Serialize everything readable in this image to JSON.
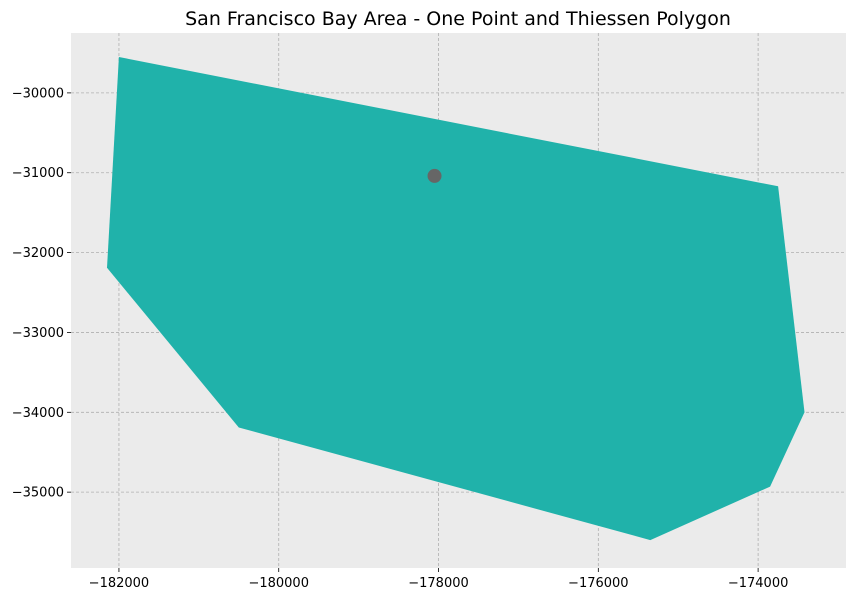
{
  "chart_data": {
    "type": "map",
    "title": "San Francisco Bay Area - One Point and Thiessen Polygon",
    "xlabel": "",
    "ylabel": "",
    "xlim": [
      -182600,
      -172900
    ],
    "ylim": [
      -35950,
      -29250
    ],
    "xticks": [
      -182000,
      -180000,
      -178000,
      -176000,
      -174000
    ],
    "yticks": [
      -30000,
      -31000,
      -32000,
      -33000,
      -34000,
      -35000
    ],
    "xtick_labels": [
      "−182000",
      "−180000",
      "−178000",
      "−176000",
      "−174000"
    ],
    "ytick_labels": [
      "−30000",
      "−31000",
      "−32000",
      "−33000",
      "−34000",
      "−35000"
    ],
    "grid": true,
    "colors": {
      "background": "#ebebeb",
      "polygon": "#20b2aa",
      "point": "#666666",
      "grid": "#b0b0b0"
    },
    "polygon": [
      [
        -182000,
        -29550
      ],
      [
        -173750,
        -31170
      ],
      [
        -173420,
        -34000
      ],
      [
        -173850,
        -34930
      ],
      [
        -175350,
        -35600
      ],
      [
        -180500,
        -34190
      ],
      [
        -182150,
        -32190
      ]
    ],
    "point": [
      -178050,
      -31040
    ]
  }
}
